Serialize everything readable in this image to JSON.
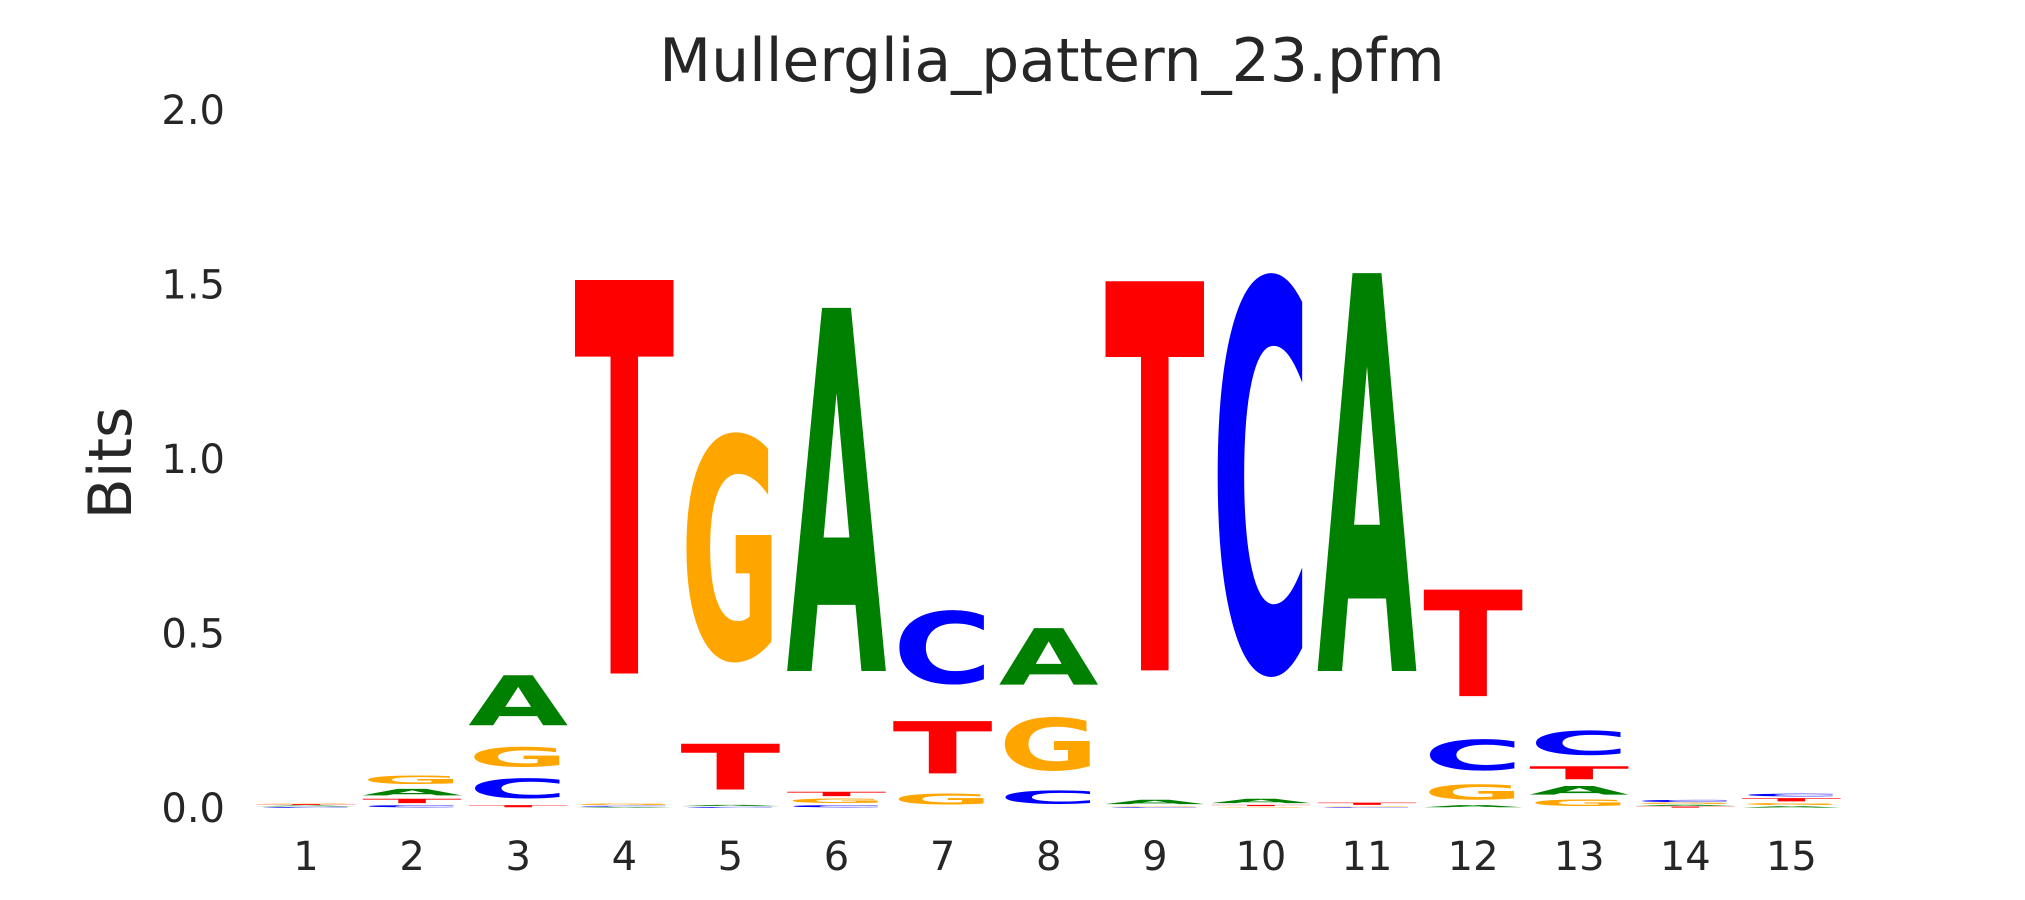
{
  "chart_data": {
    "type": "sequence_logo",
    "title": "Mullerglia_pattern_23.pfm",
    "ylabel": "Bits",
    "xlabel": "",
    "ylim": [
      0,
      2
    ],
    "y_ticks": [
      "0.0",
      "0.5",
      "1.0",
      "1.5",
      "2.0"
    ],
    "x_ticks": [
      "1",
      "2",
      "3",
      "4",
      "5",
      "6",
      "7",
      "8",
      "9",
      "10",
      "11",
      "12",
      "13",
      "14",
      "15"
    ],
    "grid": false,
    "colors": {
      "A": "#008000",
      "C": "#0000ff",
      "G": "#ffa500",
      "T": "#ff0000"
    },
    "positions": [
      {
        "pos": 1,
        "letters": [
          {
            "base": "C",
            "height": 0.004
          },
          {
            "base": "A",
            "height": 0.004
          },
          {
            "base": "T",
            "height": 0.004
          },
          {
            "base": "G",
            "height": 0.004
          }
        ]
      },
      {
        "pos": 2,
        "letters": [
          {
            "base": "C",
            "height": 0.01
          },
          {
            "base": "T",
            "height": 0.02
          },
          {
            "base": "A",
            "height": 0.03
          },
          {
            "base": "G",
            "height": 0.04
          }
        ]
      },
      {
        "pos": 3,
        "letters": [
          {
            "base": "T",
            "height": 0.01
          },
          {
            "base": "C",
            "height": 0.09
          },
          {
            "base": "G",
            "height": 0.09
          },
          {
            "base": "A",
            "height": 0.23
          }
        ]
      },
      {
        "pos": 4,
        "letters": [
          {
            "base": "A",
            "height": 0.003
          },
          {
            "base": "C",
            "height": 0.004
          },
          {
            "base": "G",
            "height": 0.007
          },
          {
            "base": "T",
            "height": 1.81
          }
        ]
      },
      {
        "pos": 5,
        "letters": [
          {
            "base": "C",
            "height": 0.004
          },
          {
            "base": "A",
            "height": 0.006
          },
          {
            "base": "T",
            "height": 0.21
          },
          {
            "base": "G",
            "height": 1.02
          }
        ]
      },
      {
        "pos": 6,
        "letters": [
          {
            "base": "C",
            "height": 0.01
          },
          {
            "base": "G",
            "height": 0.02
          },
          {
            "base": "T",
            "height": 0.02
          },
          {
            "base": "A",
            "height": 1.67
          }
        ]
      },
      {
        "pos": 7,
        "letters": [
          {
            "base": "G",
            "height": 0.05
          },
          {
            "base": "T",
            "height": 0.24
          },
          {
            "base": "C",
            "height": 0.33
          }
        ]
      },
      {
        "pos": 8,
        "letters": [
          {
            "base": "C",
            "height": 0.06
          },
          {
            "base": "G",
            "height": 0.24
          },
          {
            "base": "A",
            "height": 0.26
          }
        ]
      },
      {
        "pos": 9,
        "letters": [
          {
            "base": "C",
            "height": 0.003
          },
          {
            "base": "G",
            "height": 0.004
          },
          {
            "base": "A",
            "height": 0.02
          },
          {
            "base": "T",
            "height": 1.79
          }
        ]
      },
      {
        "pos": 10,
        "letters": [
          {
            "base": "G",
            "height": 0.004
          },
          {
            "base": "T",
            "height": 0.006
          },
          {
            "base": "A",
            "height": 0.02
          },
          {
            "base": "C",
            "height": 1.79
          }
        ]
      },
      {
        "pos": 11,
        "letters": [
          {
            "base": "C",
            "height": 0.003
          },
          {
            "base": "G",
            "height": 0.004
          },
          {
            "base": "T",
            "height": 0.01
          },
          {
            "base": "A",
            "height": 1.83
          }
        ]
      },
      {
        "pos": 12,
        "letters": [
          {
            "base": "A",
            "height": 0.01
          },
          {
            "base": "G",
            "height": 0.07
          },
          {
            "base": "C",
            "height": 0.14
          },
          {
            "base": "T",
            "height": 0.49
          }
        ]
      },
      {
        "pos": 13,
        "letters": [
          {
            "base": "G",
            "height": 0.03
          },
          {
            "base": "A",
            "height": 0.04
          },
          {
            "base": "T",
            "height": 0.06
          },
          {
            "base": "C",
            "height": 0.11
          }
        ]
      },
      {
        "pos": 14,
        "letters": [
          {
            "base": "T",
            "height": 0.005
          },
          {
            "base": "A",
            "height": 0.005
          },
          {
            "base": "G",
            "height": 0.005
          },
          {
            "base": "C",
            "height": 0.01
          }
        ]
      },
      {
        "pos": 15,
        "letters": [
          {
            "base": "A",
            "height": 0.006
          },
          {
            "base": "G",
            "height": 0.01
          },
          {
            "base": "T",
            "height": 0.015
          },
          {
            "base": "C",
            "height": 0.012
          }
        ]
      }
    ]
  }
}
